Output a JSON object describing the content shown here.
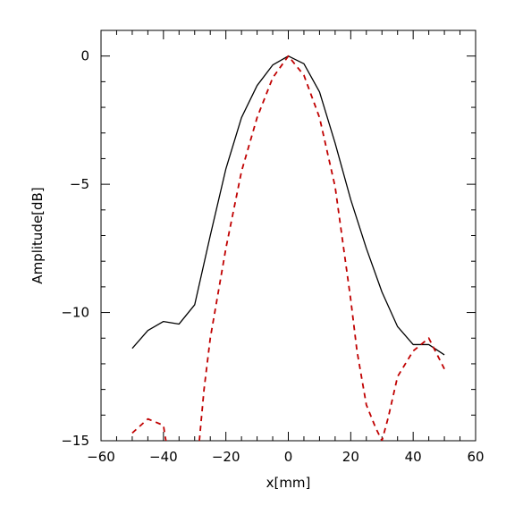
{
  "chart_data": {
    "type": "line",
    "title": "",
    "xlabel": "x[mm]",
    "ylabel": "Amplitude[dB]",
    "xlim": [
      -60,
      60
    ],
    "ylim": [
      -15,
      1
    ],
    "xticks": [
      -60,
      -40,
      -20,
      0,
      20,
      40,
      60
    ],
    "xtick_labels": [
      "−60",
      "−40",
      "−20",
      "0",
      "20",
      "40",
      "60"
    ],
    "yticks": [
      0,
      -5,
      -10,
      -15
    ],
    "ytick_labels": [
      "0",
      "−5",
      "−10",
      "−15"
    ],
    "grid": false,
    "legend": "none",
    "series": [
      {
        "style": "solid",
        "color": "#000000",
        "x": [
          -50,
          -45,
          -40,
          -35,
          -30,
          -25,
          -20,
          -15,
          -10,
          -5,
          0,
          5,
          10,
          15,
          20,
          25,
          30,
          35,
          40,
          45,
          50
        ],
        "y": [
          -11.4,
          -10.7,
          -10.35,
          -10.45,
          -9.7,
          -7.0,
          -4.4,
          -2.4,
          -1.15,
          -0.35,
          0,
          -0.3,
          -1.4,
          -3.4,
          -5.6,
          -7.5,
          -9.2,
          -10.55,
          -11.25,
          -11.25,
          -11.65
        ]
      },
      {
        "style": "dashed",
        "color": "#c00000",
        "segments": [
          {
            "x": [
              -50,
              -45,
              -40,
              -39.5,
              -39.2
            ],
            "y": [
              -14.7,
              -14.15,
              -14.4,
              -14.8,
              -15.0
            ]
          },
          {
            "x": [
              -28.5,
              -27,
              -25,
              -20,
              -15,
              -10,
              -5,
              0,
              5,
              10,
              15,
              20,
              22,
              25,
              28,
              30,
              32,
              35,
              40,
              45,
              50
            ],
            "y": [
              -15.0,
              -13.0,
              -11.0,
              -7.5,
              -4.5,
              -2.4,
              -0.85,
              0,
              -0.75,
              -2.4,
              -5.1,
              -9.5,
              -11.5,
              -13.6,
              -14.5,
              -15.0,
              -14.1,
              -12.5,
              -11.5,
              -11.0,
              -12.2
            ]
          }
        ]
      }
    ]
  }
}
